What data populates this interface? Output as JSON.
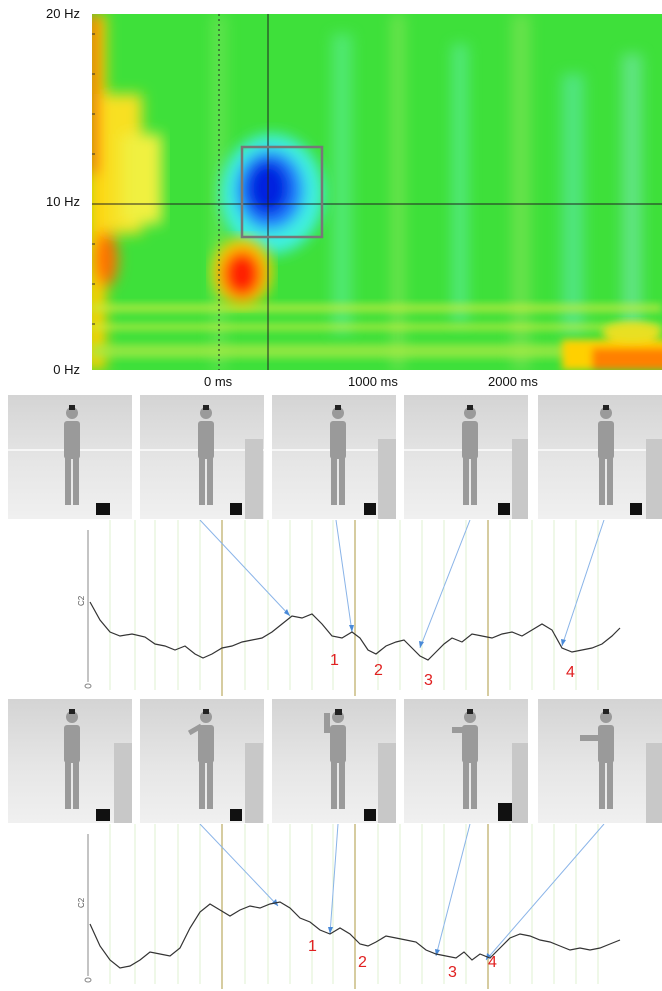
{
  "spectrogram": {
    "y_labels": [
      "20 Hz",
      "10 Hz",
      "0 Hz"
    ],
    "x_labels": [
      "0 ms",
      "1000 ms",
      "2000 ms"
    ],
    "colors": {
      "background": "#30e030",
      "low": "#0030ff",
      "high": "#ff2000"
    }
  },
  "panel1": {
    "frames": 5,
    "markers": [
      "1",
      "2",
      "3",
      "4"
    ],
    "channel_label": "C2"
  },
  "panel2": {
    "frames": 5,
    "markers": [
      "1",
      "2",
      "3",
      "4"
    ],
    "channel_label": "C2"
  }
}
